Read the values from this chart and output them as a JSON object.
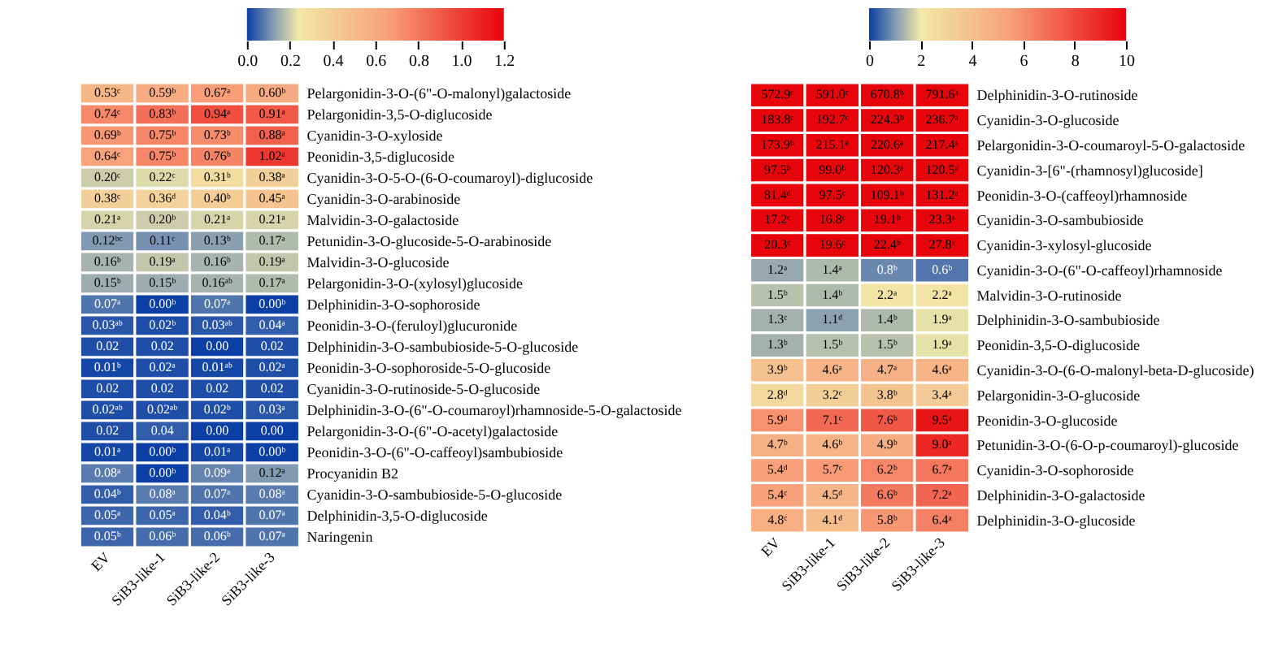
{
  "chart_data": [
    {
      "type": "heatmap",
      "categories": [
        "EV",
        "SiB3-like-1",
        "SiB3-like-2",
        "SiB3-like-3"
      ],
      "y_categories": [
        "Pelargonidin-3-O-(6\"-O-malonyl)galactoside",
        "Pelargonidin-3,5-O-diglucoside",
        "Cyanidin-3-O-xyloside",
        "Peonidin-3,5-diglucoside",
        "Cyanidin-3-O-5-O-(6-O-coumaroyl)-diglucoside",
        "Cyanidin-3-O-arabinoside",
        "Malvidin-3-O-galactoside",
        "Petunidin-3-O-glucoside-5-O-arabinoside",
        "Malvidin-3-O-glucoside",
        "Pelargonidin-3-O-(xylosyl)glucoside",
        "Delphinidin-3-O-sophoroside",
        "Peonidin-3-O-(feruloyl)glucuronide",
        "Delphinidin-3-O-sambubioside-5-O-glucoside",
        "Peonidin-3-O-sophoroside-5-O-glucoside",
        "Cyanidin-3-O-rutinoside-5-O-glucoside",
        "Delphinidin-3-O-(6\"-O-coumaroyl)rhamnoside-5-O-galactoside",
        "Pelargonidin-3-O-(6\"-O-acetyl)galactoside",
        "Peonidin-3-O-(6\"-O-caffeoyl)sambubioside",
        "Procyanidin B2",
        "Cyanidin-3-O-sambubioside-5-O-glucoside",
        "Delphinidin-3,5-O-diglucoside",
        "Naringenin"
      ],
      "cells": [
        [
          0.53,
          0.59,
          0.67,
          0.6
        ],
        [
          0.74,
          0.83,
          0.94,
          0.91
        ],
        [
          0.69,
          0.75,
          0.73,
          0.88
        ],
        [
          0.64,
          0.75,
          0.76,
          1.02
        ],
        [
          0.2,
          0.22,
          0.31,
          0.38
        ],
        [
          0.38,
          0.36,
          0.4,
          0.45
        ],
        [
          0.21,
          0.2,
          0.21,
          0.21
        ],
        [
          0.12,
          0.11,
          0.13,
          0.17
        ],
        [
          0.16,
          0.19,
          0.16,
          0.19
        ],
        [
          0.15,
          0.15,
          0.16,
          0.17
        ],
        [
          0.07,
          0.0,
          0.07,
          0.0
        ],
        [
          0.03,
          0.02,
          0.03,
          0.04
        ],
        [
          0.02,
          0.02,
          0.0,
          0.02
        ],
        [
          0.01,
          0.02,
          0.01,
          0.02
        ],
        [
          0.02,
          0.02,
          0.02,
          0.02
        ],
        [
          0.02,
          0.02,
          0.02,
          0.03
        ],
        [
          0.02,
          0.04,
          0.0,
          0.0
        ],
        [
          0.01,
          0.0,
          0.01,
          0.0
        ],
        [
          0.08,
          0.0,
          0.09,
          0.12
        ],
        [
          0.04,
          0.08,
          0.07,
          0.08
        ],
        [
          0.05,
          0.05,
          0.04,
          0.07
        ],
        [
          0.05,
          0.06,
          0.06,
          0.07
        ]
      ],
      "cell_labels": [
        [
          "0.53ᶜ",
          "0.59ᵇ",
          "0.67ᵃ",
          "0.60ᵇ"
        ],
        [
          "0.74ᶜ",
          "0.83ᵇ",
          "0.94ᵃ",
          "0.91ᵃ"
        ],
        [
          "0.69ᵇ",
          "0.75ᵇ",
          "0.73ᵇ",
          "0.88ᵃ"
        ],
        [
          "0.64ᶜ",
          "0.75ᵇ",
          "0.76ᵇ",
          "1.02ᵃ"
        ],
        [
          "0.20ᶜ",
          "0.22ᶜ",
          "0.31ᵇ",
          "0.38ᵃ"
        ],
        [
          "0.38ᶜ",
          "0.36ᵈ",
          "0.40ᵇ",
          "0.45ᵃ"
        ],
        [
          "0.21ᵃ",
          "0.20ᵇ",
          "0.21ᵃ",
          "0.21ᵃ"
        ],
        [
          "0.12ᵇᶜ",
          "0.11ᶜ",
          "0.13ᵇ",
          "0.17ᵃ"
        ],
        [
          "0.16ᵇ",
          "0.19ᵃ",
          "0.16ᵇ",
          "0.19ᵃ"
        ],
        [
          "0.15ᵇ",
          "0.15ᵇ",
          "0.16ᵃᵇ",
          "0.17ᵃ"
        ],
        [
          "0.07ᵃ",
          "0.00ᵇ",
          "0.07ᵃ",
          "0.00ᵇ"
        ],
        [
          "0.03ᵃᵇ",
          "0.02ᵇ",
          "0.03ᵃᵇ",
          "0.04ᵃ"
        ],
        [
          "0.02",
          "0.02",
          "0.00",
          "0.02"
        ],
        [
          "0.01ᵇ",
          "0.02ᵃ",
          "0.01ᵃᵇ",
          "0.02ᵃ"
        ],
        [
          "0.02",
          "0.02",
          "0.02",
          "0.02"
        ],
        [
          "0.02ᵃᵇ",
          "0.02ᵃᵇ",
          "0.02ᵇ",
          "0.03ᵃ"
        ],
        [
          "0.02",
          "0.04",
          "0.00",
          "0.00"
        ],
        [
          "0.01ᵃ",
          "0.00ᵇ",
          "0.01ᵃ",
          "0.00ᵇ"
        ],
        [
          "0.08ᵃ",
          "0.00ᵇ",
          "0.09ᵃ",
          "0.12ᵃ"
        ],
        [
          "0.04ᵇ",
          "0.08ᵃ",
          "0.07ᵃ",
          "0.08ᵃ"
        ],
        [
          "0.05ᵃ",
          "0.05ᵃ",
          "0.04ᵇ",
          "0.07ᵃ"
        ],
        [
          "0.05ᵇ",
          "0.06ᵇ",
          "0.06ᵇ",
          "0.07ᵃ"
        ]
      ],
      "clim": [
        0,
        1.2
      ],
      "cticks": [
        {
          "value": 0,
          "label": "0.0"
        },
        {
          "value": 0.2,
          "label": "0.2"
        },
        {
          "value": 0.4,
          "label": "0.4"
        },
        {
          "value": 0.6,
          "label": "0.6"
        },
        {
          "value": 0.8,
          "label": "0.8"
        },
        {
          "value": 1.0,
          "label": "1.0"
        },
        {
          "value": 1.2,
          "label": "1.2"
        }
      ]
    },
    {
      "type": "heatmap",
      "categories": [
        "EV",
        "SiB3-like-1",
        "SiB3-like-2",
        "SiB3-like-3"
      ],
      "y_categories": [
        "Delphinidin-3-O-rutinoside",
        "Cyanidin-3-O-glucoside",
        "Pelargonidin-3-O-coumaroyl-5-O-galactoside",
        "Cyanidin-3-[6\"-(rhamnosyl)glucoside]",
        "Peonidin-3-O-(caffeoyl)rhamnoside",
        "Cyanidin-3-O-sambubioside",
        "Cyanidin-3-xylosyl-glucoside",
        "Cyanidin-3-O-(6\"-O-caffeoyl)rhamnoside",
        "Malvidin-3-O-rutinoside",
        "Delphinidin-3-O-sambubioside",
        "Peonidin-3,5-O-diglucoside",
        "Cyanidin-3-O-(6-O-malonyl-beta-D-glucoside)",
        "Pelargonidin-3-O-glucoside",
        "Peonidin-3-O-glucoside",
        "Petunidin-3-O-(6-O-p-coumaroyl)-glucoside",
        "Cyanidin-3-O-sophoroside",
        "Delphinidin-3-O-galactoside",
        "Delphinidin-3-O-glucoside"
      ],
      "cells": [
        [
          572.9,
          591.0,
          670.8,
          791.6
        ],
        [
          183.8,
          192.7,
          224.3,
          236.7
        ],
        [
          173.9,
          215.1,
          220.6,
          217.4
        ],
        [
          97.5,
          99.0,
          120.3,
          120.5
        ],
        [
          81.4,
          97.5,
          109.1,
          131.2
        ],
        [
          17.2,
          16.8,
          19.1,
          23.3
        ],
        [
          20.3,
          19.6,
          22.4,
          27.8
        ],
        [
          1.2,
          1.4,
          0.8,
          0.6
        ],
        [
          1.5,
          1.4,
          2.2,
          2.2
        ],
        [
          1.3,
          1.1,
          1.4,
          1.9
        ],
        [
          1.3,
          1.5,
          1.5,
          1.9
        ],
        [
          3.9,
          4.6,
          4.7,
          4.6
        ],
        [
          2.8,
          3.2,
          3.8,
          3.4
        ],
        [
          5.9,
          7.1,
          7.6,
          9.5
        ],
        [
          4.7,
          4.6,
          4.9,
          9.0
        ],
        [
          5.4,
          5.7,
          6.2,
          6.7
        ],
        [
          5.4,
          4.5,
          6.6,
          7.2
        ],
        [
          4.8,
          4.1,
          5.8,
          6.4
        ]
      ],
      "cell_labels": [
        [
          "572.9ᶜ",
          "591.0ᶜ",
          "670.8ᵇ",
          "791.6ᵃ"
        ],
        [
          "183.8ᶜ",
          "192.7ᶜ",
          "224.3ᵇ",
          "236.7ᵃ"
        ],
        [
          "173.9ᵇ",
          "215.1ᵃ",
          "220.6ᵃ",
          "217.4ᵃ"
        ],
        [
          "97.5ᵇ",
          "99.0ᵇ",
          "120.3ᵃ",
          "120.5ᵃ"
        ],
        [
          "81.4ᵈ",
          "97.5ᶜ",
          "109.1ᵇ",
          "131.2ᵃ"
        ],
        [
          "17.2ᶜ",
          "16.8ᶜ",
          "19.1ᵇ",
          "23.3ᵃ"
        ],
        [
          "20.3ᶜ",
          "19.6ᶜ",
          "22.4ᵇ",
          "27.8ᵃ"
        ],
        [
          "1.2ᵃ",
          "1.4ᵃ",
          "0.8ᵇ",
          "0.6ᵇ"
        ],
        [
          "1.5ᵇ",
          "1.4ᵇ",
          "2.2ᵃ",
          "2.2ᵃ"
        ],
        [
          "1.3ᶜ",
          "1.1ᵈ",
          "1.4ᵇ",
          "1.9ᵃ"
        ],
        [
          "1.3ᵇ",
          "1.5ᵇ",
          "1.5ᵇ",
          "1.9ᵃ"
        ],
        [
          "3.9ᵇ",
          "4.6ᵃ",
          "4.7ᵃ",
          "4.6ᵃ"
        ],
        [
          "2.8ᵈ",
          "3.2ᶜ",
          "3.8ᵇ",
          "3.4ᵃ"
        ],
        [
          "5.9ᵈ",
          "7.1ᶜ",
          "7.6ᵇ",
          "9.5ᵃ"
        ],
        [
          "4.7ᵇ",
          "4.6ᵇ",
          "4.9ᵇ",
          "9.0ᵃ"
        ],
        [
          "5.4ᵈ",
          "5.7ᶜ",
          "6.2ᵇ",
          "6.7ᵃ"
        ],
        [
          "5.4ᶜ",
          "4.5ᵈ",
          "6.6ᵇ",
          "7.2ᵃ"
        ],
        [
          "4.8ᶜ",
          "4.1ᵈ",
          "5.8ᵇ",
          "6.4ᵃ"
        ]
      ],
      "clim": [
        0,
        10
      ],
      "cticks": [
        0,
        2,
        4,
        6,
        8,
        10
      ]
    }
  ]
}
